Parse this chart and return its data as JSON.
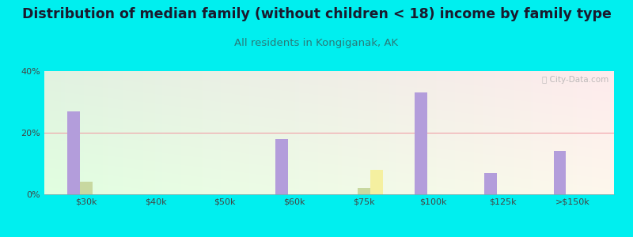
{
  "title": "Distribution of median family (without children < 18) income by family type",
  "subtitle": "All residents in Kongiganak, AK",
  "background_color": "#00EFEF",
  "categories": [
    "$30k",
    "$40k",
    "$50k",
    "$60k",
    "$75k",
    "$100k",
    "$125k",
    ">$150k"
  ],
  "married_couple": [
    27,
    0,
    0,
    18,
    0,
    33,
    7,
    14
  ],
  "male_no_wife": [
    4,
    0,
    0,
    0,
    2,
    0,
    0,
    0
  ],
  "female_no_husband": [
    0,
    0,
    0,
    0,
    8,
    0,
    0,
    0
  ],
  "bar_width": 0.18,
  "ylim": [
    0,
    40
  ],
  "yticks": [
    0,
    20,
    40
  ],
  "ytick_labels": [
    "0%",
    "20%",
    "40%"
  ],
  "married_color": "#b39ddb",
  "male_color": "#c8d8a0",
  "female_color": "#f5f0a0",
  "grid_color": "#f0a0a8",
  "title_fontsize": 12.5,
  "subtitle_fontsize": 9.5,
  "tick_fontsize": 8,
  "legend_fontsize": 8.5,
  "watermark": "City-Data.com"
}
